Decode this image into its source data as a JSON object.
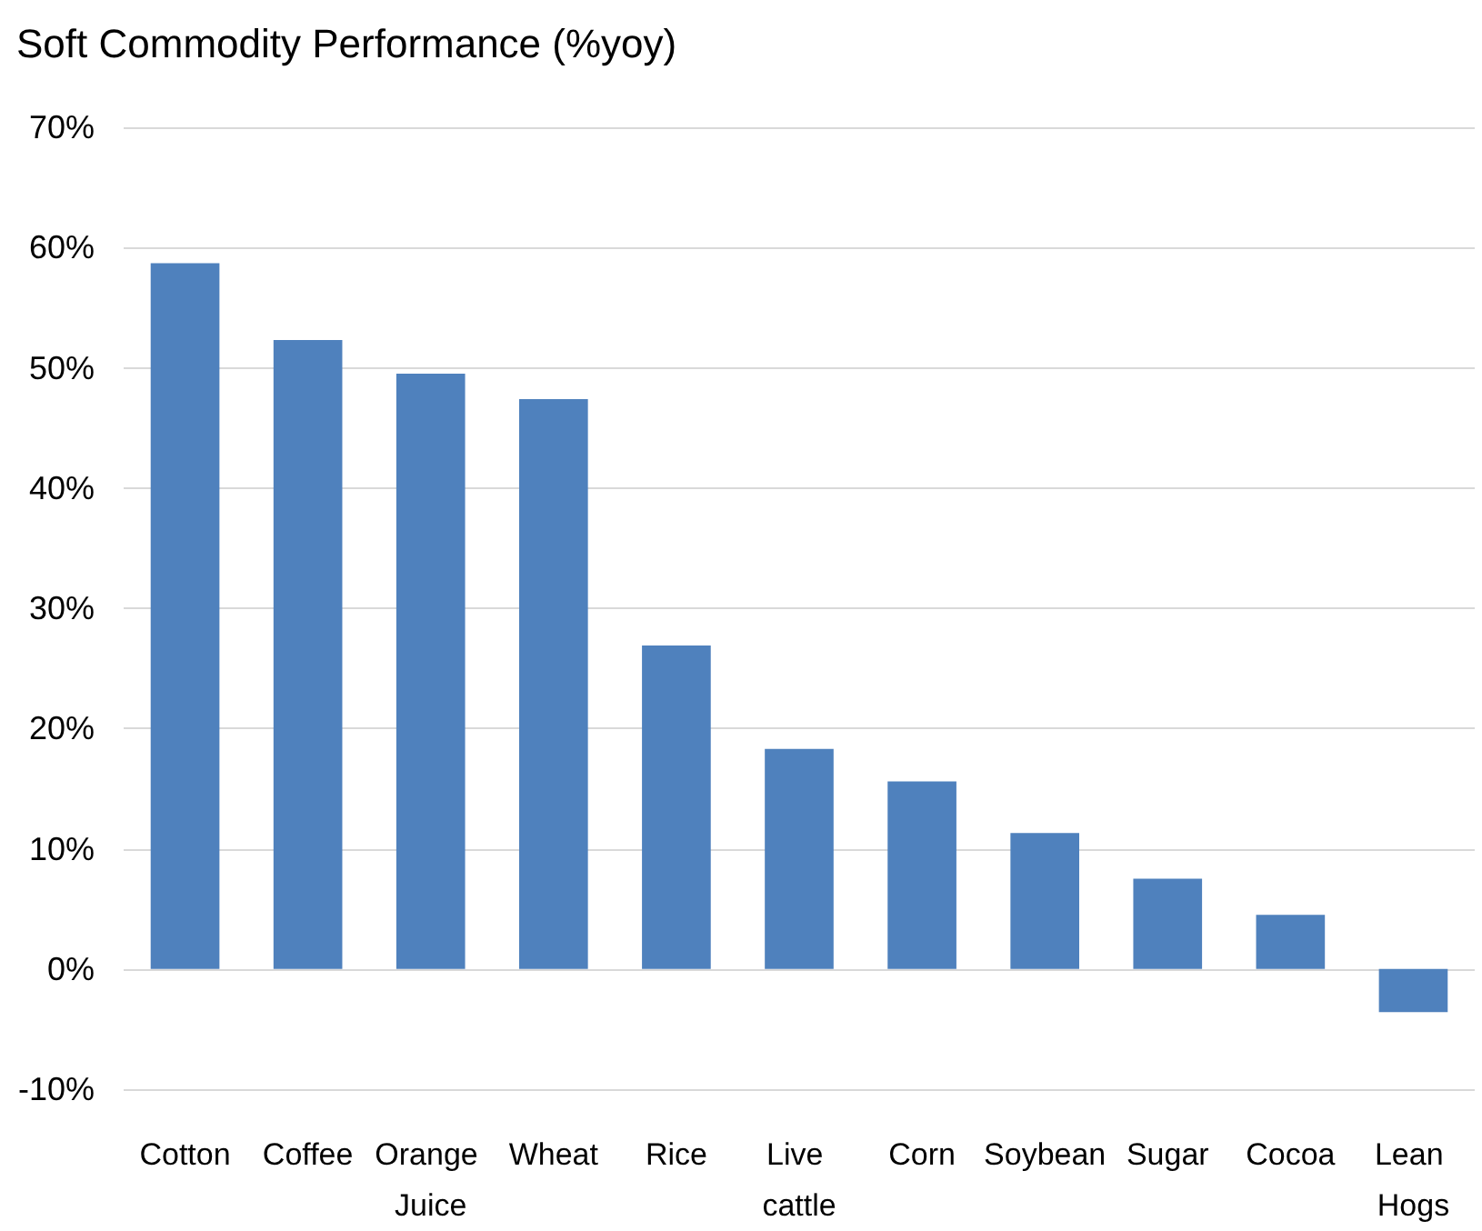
{
  "chart_data": {
    "type": "bar",
    "title": "Soft Commodity Performance (%yoy)",
    "categories": [
      "Cotton",
      "Coffee",
      "Orange Juice",
      "Wheat",
      "Rice",
      "Live cattle",
      "Corn",
      "Soybean",
      "Sugar",
      "Cocoa",
      "Lean Hogs"
    ],
    "values": [
      58.7,
      52.3,
      49.5,
      47.4,
      26.9,
      18.3,
      15.6,
      11.3,
      7.5,
      4.5,
      -3.6
    ],
    "color": "#4f81bd",
    "ylim": [
      -10,
      70
    ],
    "yticks": [
      {
        "value": -10,
        "label": "-10%"
      },
      {
        "value": 0,
        "label": "0%"
      },
      {
        "value": 10,
        "label": "10%"
      },
      {
        "value": 20,
        "label": "20%"
      },
      {
        "value": 30,
        "label": "30%"
      },
      {
        "value": 40,
        "label": "40%"
      },
      {
        "value": 50,
        "label": "50%"
      },
      {
        "value": 60,
        "label": "60%"
      },
      {
        "value": 70,
        "label": "70%"
      }
    ],
    "grid": "y"
  }
}
